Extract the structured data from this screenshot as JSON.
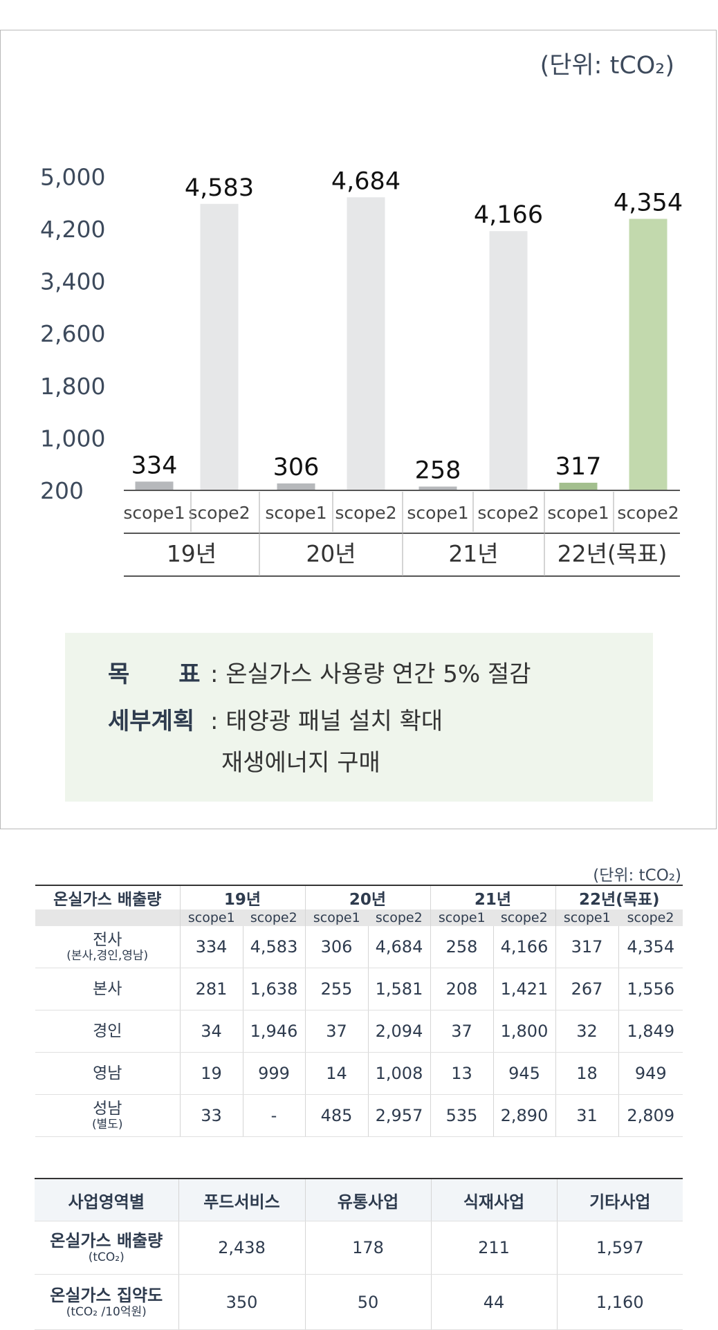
{
  "chart_data": {
    "type": "bar",
    "unit_label": "(단위: tCO₂)",
    "y_ticks": [
      "5,000",
      "4,200",
      "3,400",
      "2,600",
      "1,800",
      "1,000",
      "200"
    ],
    "ylim": [
      200,
      5000
    ],
    "groups": [
      {
        "label": "19년",
        "bars": [
          {
            "label": "scope1",
            "value": 334,
            "value_text": "334",
            "color": "#b6b8bb"
          },
          {
            "label": "scope2",
            "value": 4583,
            "value_text": "4,583",
            "color": "#e6e7e8"
          }
        ]
      },
      {
        "label": "20년",
        "bars": [
          {
            "label": "scope1",
            "value": 306,
            "value_text": "306",
            "color": "#b6b8bb"
          },
          {
            "label": "scope2",
            "value": 4684,
            "value_text": "4,684",
            "color": "#e6e7e8"
          }
        ]
      },
      {
        "label": "21년",
        "bars": [
          {
            "label": "scope1",
            "value": 258,
            "value_text": "258",
            "color": "#b6b8bb"
          },
          {
            "label": "scope2",
            "value": 4166,
            "value_text": "4,166",
            "color": "#e6e7e8"
          }
        ]
      },
      {
        "label": "22년(목표)",
        "bars": [
          {
            "label": "scope1",
            "value": 317,
            "value_text": "317",
            "color": "#a3bf8e"
          },
          {
            "label": "scope2",
            "value": 4354,
            "value_text": "4,354",
            "color": "#c2d9ad"
          }
        ]
      }
    ]
  },
  "goal": {
    "target_label": "목      표",
    "target_value": ": 온실가스 사용량 연간 5% 절감",
    "plan_label": "세부계획",
    "plan_value": ": 태양광 패널 설치 확대",
    "plan_value2": "재생에너지 구매"
  },
  "emissions_table": {
    "unit_label": "(단위: tCO₂)",
    "header": "온실가스 배출량",
    "years": [
      "19년",
      "20년",
      "21년",
      "22년(목표)"
    ],
    "scopes": [
      "scope1",
      "scope2"
    ],
    "rows": [
      {
        "name": "전사",
        "sub": "(본사,경인,영남)",
        "values": [
          "334",
          "4,583",
          "306",
          "4,684",
          "258",
          "4,166",
          "317",
          "4,354"
        ]
      },
      {
        "name": "본사",
        "sub": "",
        "values": [
          "281",
          "1,638",
          "255",
          "1,581",
          "208",
          "1,421",
          "267",
          "1,556"
        ]
      },
      {
        "name": "경인",
        "sub": "",
        "values": [
          "34",
          "1,946",
          "37",
          "2,094",
          "37",
          "1,800",
          "32",
          "1,849"
        ]
      },
      {
        "name": "영남",
        "sub": "",
        "values": [
          "19",
          "999",
          "14",
          "1,008",
          "13",
          "945",
          "18",
          "949"
        ]
      },
      {
        "name": "성남",
        "sub": "(별도)",
        "values": [
          "33",
          "-",
          "485",
          "2,957",
          "535",
          "2,890",
          "31",
          "2,809"
        ]
      }
    ]
  },
  "business_table": {
    "header": "사업영역별",
    "columns": [
      "푸드서비스",
      "유통사업",
      "식재사업",
      "기타사업"
    ],
    "row1": {
      "name": "온실가스 배출량",
      "sub": "(tCO₂)",
      "values": [
        "2,438",
        "178",
        "211",
        "1,597"
      ]
    },
    "row2": {
      "name": "온실가스 집약도",
      "sub": "(tCO₂  /10억원)",
      "values": [
        "350",
        "50",
        "44",
        "1,160"
      ]
    }
  }
}
